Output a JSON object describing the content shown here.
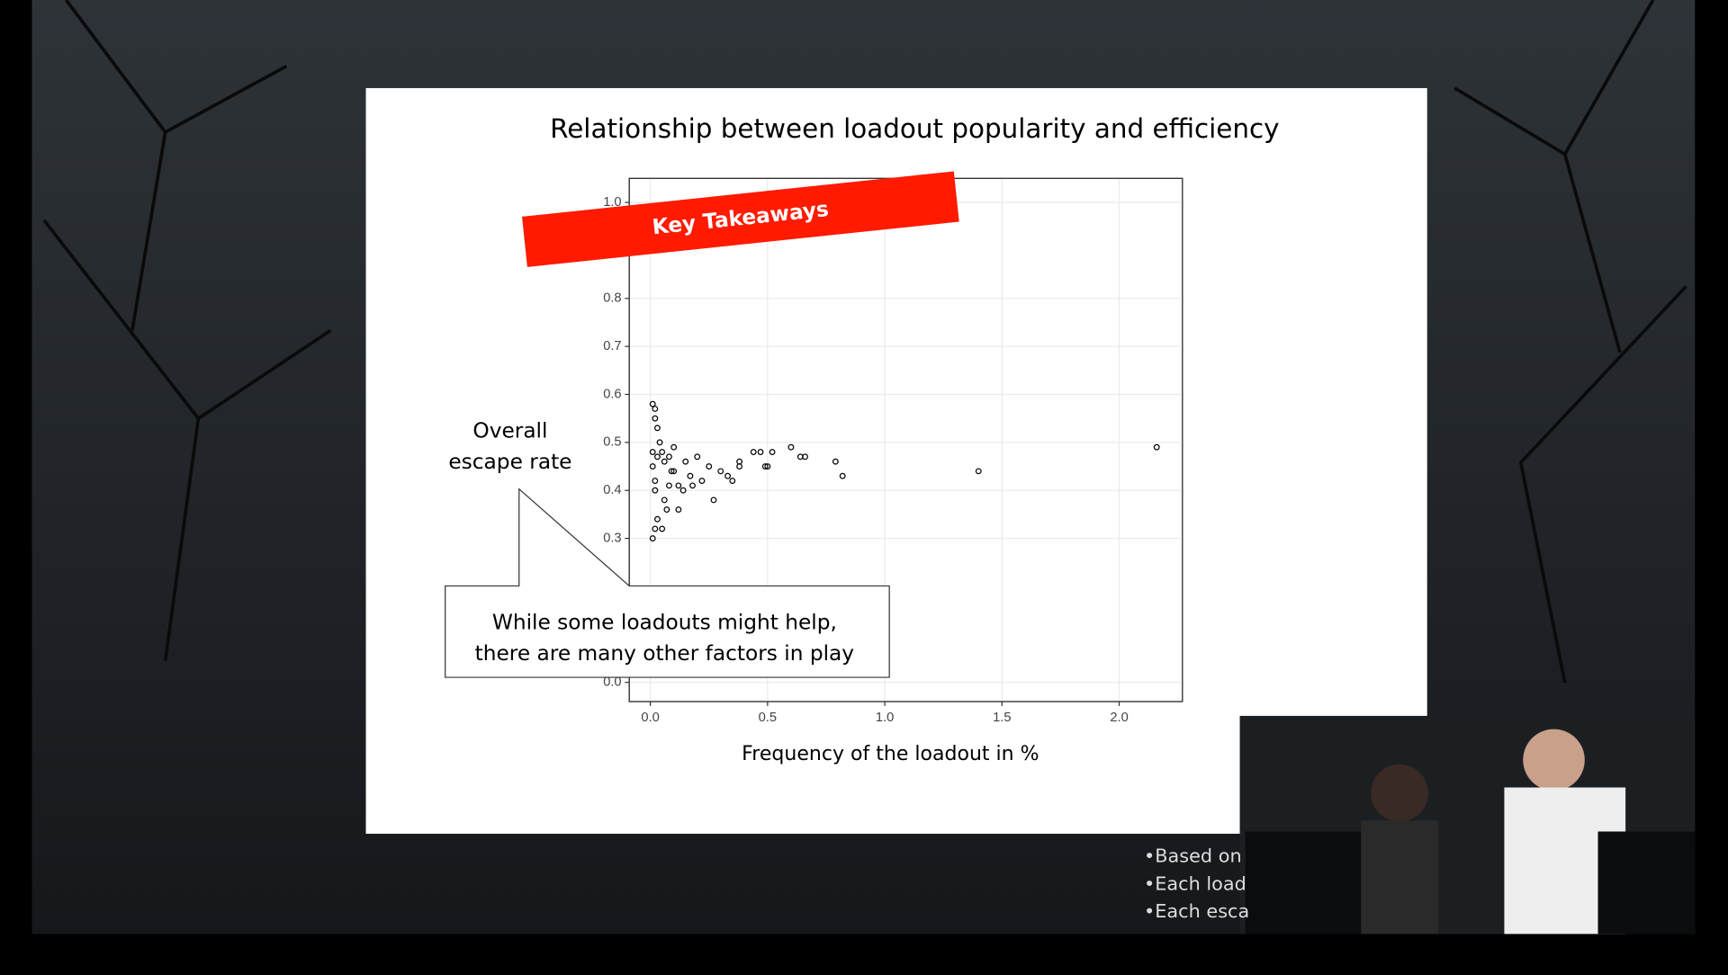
{
  "chart_data": {
    "type": "scatter",
    "title": "Relationship between loadout popularity and efficiency",
    "x_label": "Frequency of the loadout in %",
    "x": [
      0.01,
      0.01,
      0.02,
      0.02,
      0.02,
      0.03,
      0.03,
      0.01,
      0.02,
      0.04,
      0.05,
      0.06,
      0.07,
      0.08,
      0.09,
      0.1,
      0.12,
      0.14,
      0.15,
      0.17,
      0.2,
      0.22,
      0.25,
      0.27,
      0.3,
      0.33,
      0.35,
      0.38,
      0.38,
      0.44,
      0.47,
      0.49,
      0.5,
      0.52,
      0.6,
      0.64,
      0.66,
      0.79,
      0.82,
      1.4,
      2.16,
      0.02,
      0.01,
      0.03,
      0.05,
      0.08,
      0.12,
      0.18,
      0.1,
      0.06
    ],
    "values": [
      0.58,
      0.3,
      0.57,
      0.32,
      0.55,
      0.53,
      0.34,
      0.45,
      0.42,
      0.5,
      0.48,
      0.38,
      0.36,
      0.47,
      0.44,
      0.49,
      0.41,
      0.4,
      0.46,
      0.43,
      0.47,
      0.42,
      0.45,
      0.38,
      0.44,
      0.43,
      0.42,
      0.46,
      0.45,
      0.48,
      0.48,
      0.45,
      0.45,
      0.48,
      0.49,
      0.47,
      0.47,
      0.46,
      0.43,
      0.44,
      0.49,
      0.4,
      0.48,
      0.47,
      0.32,
      0.41,
      0.36,
      0.41,
      0.44,
      0.46
    ],
    "color": "#000000",
    "xlim": [
      -0.09,
      2.27
    ],
    "ylim": [
      -0.04,
      1.05
    ],
    "xticks": [
      {
        "value": 0,
        "label": "0.0"
      },
      0.5,
      {
        "value": 1,
        "label": "1.0"
      },
      1.5,
      {
        "value": 2,
        "label": "2.0"
      }
    ],
    "yticks": [
      {
        "value": 0,
        "label": "0.0"
      },
      0.3,
      0.4,
      0.5,
      0.6,
      0.7,
      0.8,
      {
        "value": 1,
        "label": "1.0"
      }
    ],
    "grid": true,
    "banner": "Key Takeaways",
    "callout_label": [
      "Overall",
      "escape rate"
    ],
    "callout_text": [
      "While some loadouts might help,",
      "there are many other factors in play"
    ]
  },
  "overlay": {
    "bullets": [
      "•Based on",
      "•Each load",
      "•Each esca"
    ]
  }
}
